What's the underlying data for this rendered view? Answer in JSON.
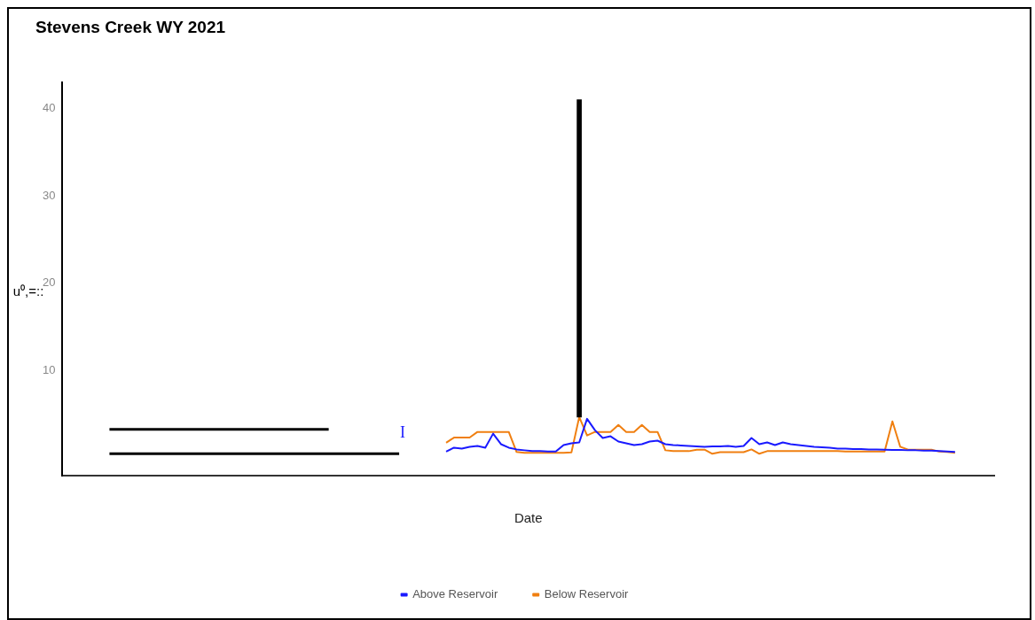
{
  "chart_data": {
    "type": "line",
    "title": "Stevens Creek WY 2021",
    "xlabel": "Date",
    "ylabel": "u⁰,=::",
    "annotations": [
      "I"
    ],
    "categories": [
      null,
      null,
      null,
      null,
      null,
      null,
      null,
      null,
      null,
      null,
      null,
      null,
      null,
      null,
      null,
      null,
      null,
      null,
      null,
      null,
      null,
      null,
      null,
      null,
      null,
      null,
      null,
      null,
      null,
      null,
      null,
      null,
      null,
      null,
      null,
      null,
      null,
      null,
      null,
      null,
      null,
      null,
      null,
      null,
      null,
      null,
      null,
      null,
      null,
      null,
      null,
      null,
      null,
      null,
      null,
      null,
      null,
      null,
      null,
      null,
      null,
      null,
      null,
      null,
      null,
      null,
      null,
      null,
      null,
      null,
      null,
      null,
      null,
      null,
      null,
      null,
      null,
      null,
      null,
      null,
      null,
      null,
      null,
      null,
      null,
      null,
      null,
      null,
      null,
      null,
      null,
      null,
      null,
      null,
      null,
      null,
      null,
      null,
      null,
      null,
      null,
      null,
      null,
      null,
      null,
      null,
      null,
      null,
      null,
      null,
      null,
      null,
      null,
      null,
      null,
      null,
      null,
      null,
      null,
      null
    ],
    "series": [
      {
        "name": "Above Reservoir",
        "color": "#1a1aff",
        "values": [
          null,
          null,
          null,
          null,
          null,
          null,
          null,
          null,
          null,
          null,
          null,
          null,
          null,
          null,
          null,
          null,
          null,
          null,
          null,
          null,
          null,
          null,
          null,
          null,
          null,
          null,
          null,
          null,
          null,
          null,
          null,
          null,
          null,
          null,
          null,
          null,
          null,
          null,
          null,
          null,
          null,
          null,
          null,
          null,
          null,
          null,
          null,
          null,
          null,
          0.74,
          1.2,
          1.1,
          1.3,
          1.4,
          1.2,
          2.8,
          1.6,
          1.2,
          1.0,
          0.9,
          0.8,
          0.8,
          0.75,
          0.75,
          1.5,
          1.7,
          1.8,
          4.5,
          3.2,
          2.3,
          2.5,
          1.9,
          1.7,
          1.5,
          1.6,
          1.9,
          2.0,
          1.6,
          1.5,
          1.45,
          1.4,
          1.35,
          1.3,
          1.35,
          1.35,
          1.4,
          1.3,
          1.4,
          2.3,
          1.6,
          1.8,
          1.5,
          1.8,
          1.6,
          1.5,
          1.4,
          1.3,
          1.25,
          1.2,
          1.1,
          1.1,
          1.05,
          1.05,
          1.0,
          1.0,
          0.97,
          0.95,
          0.95,
          0.9,
          0.9,
          0.85,
          0.85,
          0.8,
          0.75,
          0.7,
          null,
          null,
          null,
          null,
          null
        ]
      },
      {
        "name": "Below Reservoir",
        "color": "#f07f10",
        "values": [
          null,
          null,
          null,
          null,
          null,
          null,
          null,
          null,
          null,
          null,
          null,
          null,
          null,
          null,
          null,
          null,
          null,
          null,
          null,
          null,
          null,
          null,
          null,
          null,
          null,
          null,
          null,
          null,
          null,
          null,
          null,
          null,
          null,
          null,
          null,
          null,
          null,
          null,
          null,
          null,
          null,
          null,
          null,
          null,
          null,
          null,
          null,
          null,
          null,
          1.76,
          2.35,
          2.35,
          2.35,
          3.0,
          3.0,
          3.0,
          3.0,
          3.0,
          0.7,
          0.62,
          0.62,
          0.62,
          0.62,
          0.62,
          0.62,
          0.65,
          4.7,
          2.6,
          3.0,
          3.0,
          3.0,
          3.8,
          3.0,
          3.0,
          3.8,
          3.0,
          3.0,
          0.9,
          0.8,
          0.8,
          0.8,
          0.97,
          0.97,
          0.5,
          0.68,
          0.68,
          0.68,
          0.68,
          1.0,
          0.5,
          0.8,
          0.8,
          0.8,
          0.8,
          0.8,
          0.8,
          0.8,
          0.8,
          0.8,
          0.8,
          0.75,
          0.75,
          0.75,
          0.75,
          0.75,
          0.75,
          4.2,
          1.3,
          0.97,
          0.97,
          0.97,
          0.97,
          0.75,
          0.7,
          0.6,
          null,
          null,
          null,
          null,
          null
        ]
      },
      {
        "color": "#000000",
        "values": [
          null,
          null,
          null,
          null,
          null,
          null,
          3.3,
          3.3,
          3.3,
          3.3,
          3.3,
          3.3,
          3.3,
          3.3,
          3.3,
          3.3,
          3.3,
          3.3,
          3.3,
          3.3,
          3.3,
          3.3,
          3.3,
          3.3,
          3.3,
          3.3,
          3.3,
          3.3,
          3.3,
          3.3,
          3.3,
          3.3,
          3.3,
          3.3,
          3.3,
          null,
          null,
          null,
          null,
          null,
          null,
          null,
          null,
          null,
          null,
          null,
          null,
          null,
          null,
          null,
          null,
          null,
          null,
          null,
          null,
          null,
          null,
          null,
          null,
          null,
          null,
          null,
          null,
          null,
          null,
          null,
          null,
          null,
          null,
          null,
          null,
          null,
          null,
          null,
          null,
          null,
          null,
          null,
          null,
          null,
          null,
          null,
          null,
          null,
          null,
          null,
          null,
          null,
          null,
          null,
          null,
          null,
          null,
          null,
          null,
          null,
          null,
          null,
          null,
          null,
          null,
          null,
          null,
          null,
          null,
          null,
          null,
          null,
          null,
          null,
          null,
          null,
          null,
          null,
          null,
          null,
          null,
          null,
          null,
          null
        ]
      },
      {
        "color": "#000000",
        "values": [
          null,
          null,
          null,
          null,
          null,
          null,
          0.5,
          0.5,
          0.5,
          0.5,
          0.5,
          0.5,
          0.5,
          0.5,
          0.5,
          0.5,
          0.5,
          0.5,
          0.5,
          0.5,
          0.5,
          0.5,
          0.5,
          0.5,
          0.5,
          0.5,
          0.5,
          0.5,
          0.5,
          0.5,
          0.5,
          0.5,
          0.5,
          0.5,
          0.5,
          0.5,
          0.5,
          0.5,
          0.5,
          0.5,
          0.5,
          0.5,
          0.5,
          0.5,
          null,
          null,
          null,
          null,
          null,
          null,
          null,
          null,
          null,
          null,
          null,
          null,
          null,
          null,
          null,
          null,
          null,
          null,
          null,
          null,
          null,
          null,
          null,
          null,
          null,
          null,
          null,
          null,
          null,
          null,
          null,
          null,
          null,
          null,
          null,
          null,
          null,
          null,
          null,
          null,
          null,
          null,
          null,
          null,
          null,
          null,
          null,
          null,
          null,
          null,
          null,
          null,
          null,
          null,
          null,
          null,
          null,
          null,
          null,
          null,
          null,
          null,
          null,
          null,
          null,
          null,
          null,
          null,
          null,
          null,
          null,
          null,
          null,
          null,
          null,
          null
        ]
      },
      {
        "type": "bar",
        "color": "#000000",
        "values": [
          null,
          null,
          null,
          null,
          null,
          null,
          null,
          null,
          null,
          null,
          null,
          null,
          null,
          null,
          null,
          null,
          null,
          null,
          null,
          null,
          null,
          null,
          null,
          null,
          null,
          null,
          null,
          null,
          null,
          null,
          null,
          null,
          null,
          null,
          null,
          null,
          null,
          null,
          null,
          null,
          null,
          null,
          null,
          null,
          null,
          null,
          null,
          null,
          null,
          null,
          null,
          null,
          null,
          null,
          null,
          null,
          null,
          null,
          null,
          null,
          null,
          null,
          null,
          null,
          null,
          null,
          36.3,
          null,
          null,
          null,
          null,
          null,
          null,
          null,
          null,
          null,
          null,
          null,
          null,
          null,
          null,
          null,
          null,
          null,
          null,
          null,
          null,
          null,
          null,
          null,
          null,
          null,
          null,
          null,
          null,
          null,
          null,
          null,
          null,
          null,
          null,
          null,
          null,
          null,
          null,
          null,
          null,
          null,
          null,
          null,
          null,
          null,
          null,
          null,
          null,
          null,
          null,
          null,
          null,
          null
        ],
        "base": [
          null,
          null,
          null,
          null,
          null,
          null,
          null,
          null,
          null,
          null,
          null,
          null,
          null,
          null,
          null,
          null,
          null,
          null,
          null,
          null,
          null,
          null,
          null,
          null,
          null,
          null,
          null,
          null,
          null,
          null,
          null,
          null,
          null,
          null,
          null,
          null,
          null,
          null,
          null,
          null,
          null,
          null,
          null,
          null,
          null,
          null,
          null,
          null,
          null,
          null,
          null,
          null,
          null,
          null,
          null,
          null,
          null,
          null,
          null,
          null,
          null,
          null,
          null,
          null,
          null,
          null,
          4.7,
          null,
          null,
          null,
          null,
          null,
          null,
          null,
          null,
          null,
          null,
          null,
          null,
          null,
          null,
          null,
          null,
          null,
          null,
          null,
          null,
          null,
          null,
          null,
          null,
          null,
          null,
          null,
          null,
          null,
          null,
          null,
          null,
          null,
          null,
          null,
          null,
          null,
          null,
          null,
          null,
          null,
          null,
          null,
          null,
          null,
          null,
          null,
          null,
          null,
          null,
          null,
          null,
          null
        ]
      }
    ],
    "ylim": [
      -2,
      43
    ],
    "yticks": [
      10,
      20,
      30,
      40
    ],
    "tick_labels": "y",
    "grid": false,
    "legend": "bottom"
  }
}
